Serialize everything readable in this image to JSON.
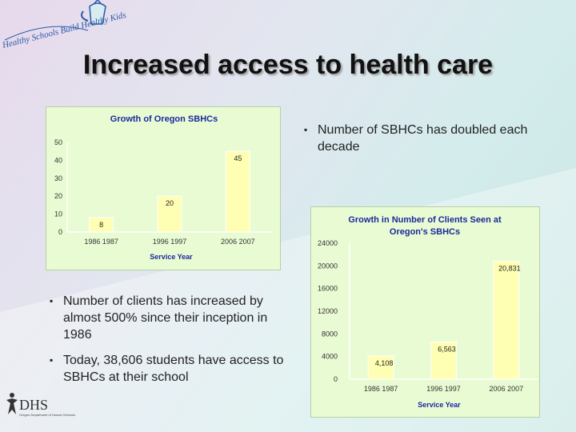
{
  "slide": {
    "title": "Increased access to health care",
    "logo_text": "Healthy Schools Build Healthy Kids",
    "footer_logo_text": "DHS",
    "footer_logo_subtext": "Oregon Department of Human Services"
  },
  "bullets": [
    "Number of SBHCs has doubled each decade",
    "Number of clients has increased by almost 500% since their inception in 1986",
    "Today, 38,606 students have access to SBHCs at their school"
  ],
  "colors": {
    "bar": "#ffffb3",
    "panel": "#e9fbd3",
    "title_text": "#1a2a9c"
  },
  "chart_data": [
    {
      "type": "bar",
      "title": "Growth of Oregon SBHCs",
      "xlabel": "Service Year",
      "ylabel": "",
      "categories": [
        "1986 1987",
        "1996 1997",
        "2006 2007"
      ],
      "values": [
        8,
        20,
        45
      ],
      "data_labels": [
        "8",
        "20",
        "45"
      ],
      "yticks": [
        "0",
        "10",
        "20",
        "30",
        "40",
        "50"
      ],
      "ylim": [
        0,
        50
      ],
      "grid": false,
      "legend": "none"
    },
    {
      "type": "bar",
      "title": "Growth in Number of Clients Seen at Oregon's SBHCs",
      "title_lines": [
        "Growth in Number of Clients Seen at",
        "Oregon's SBHCs"
      ],
      "xlabel": "Service Year",
      "ylabel": "",
      "categories": [
        "1986 1987",
        "1996 1997",
        "2006 2007"
      ],
      "values": [
        4108,
        6563,
        20831
      ],
      "data_labels": [
        "4,108",
        "6,563",
        "20,831"
      ],
      "yticks": [
        "0",
        "4000",
        "8000",
        "12000",
        "16000",
        "20000",
        "24000"
      ],
      "ylim": [
        0,
        24000
      ],
      "grid": false,
      "legend": "none"
    }
  ]
}
